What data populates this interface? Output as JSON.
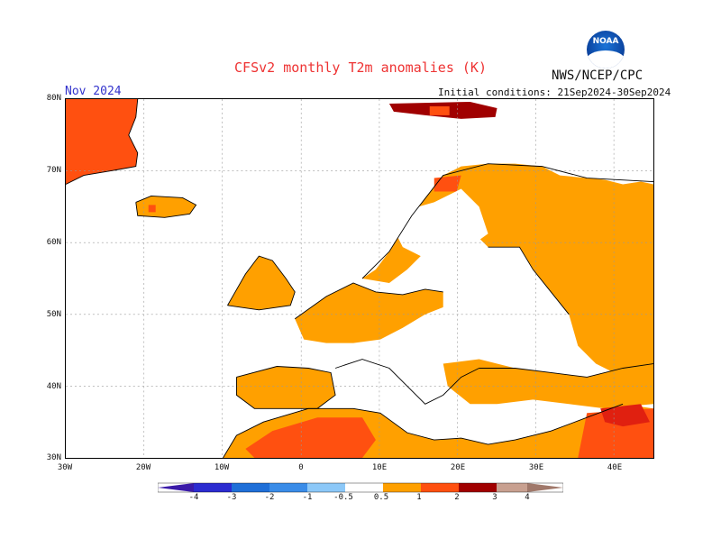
{
  "title": "CFSv2 monthly T2m anomalies (K)",
  "agency": "NWS/NCEP/CPC",
  "logo_text": "NOAA",
  "period": "Nov 2024",
  "initial_conditions": "Initial conditions: 21Sep2024-30Sep2024",
  "axes": {
    "lat_labels": [
      "80N",
      "70N",
      "60N",
      "50N",
      "40N",
      "30N"
    ],
    "lon_labels": [
      "30W",
      "20W",
      "10W",
      "0",
      "10E",
      "20E",
      "30E",
      "40E"
    ]
  },
  "colorbar": {
    "labels": [
      "-4",
      "-3",
      "-2",
      "-1",
      "-0.5",
      "0.5",
      "1",
      "2",
      "3",
      "4"
    ],
    "colors": [
      "#3a1aa8",
      "#2b2bd0",
      "#1f6fd8",
      "#4aa0f0",
      "#8cc8f8",
      "#ffffff",
      "#ffa000",
      "#ff5010",
      "#e02010",
      "#a00000",
      "#c8a090",
      "#a0786a"
    ]
  }
}
